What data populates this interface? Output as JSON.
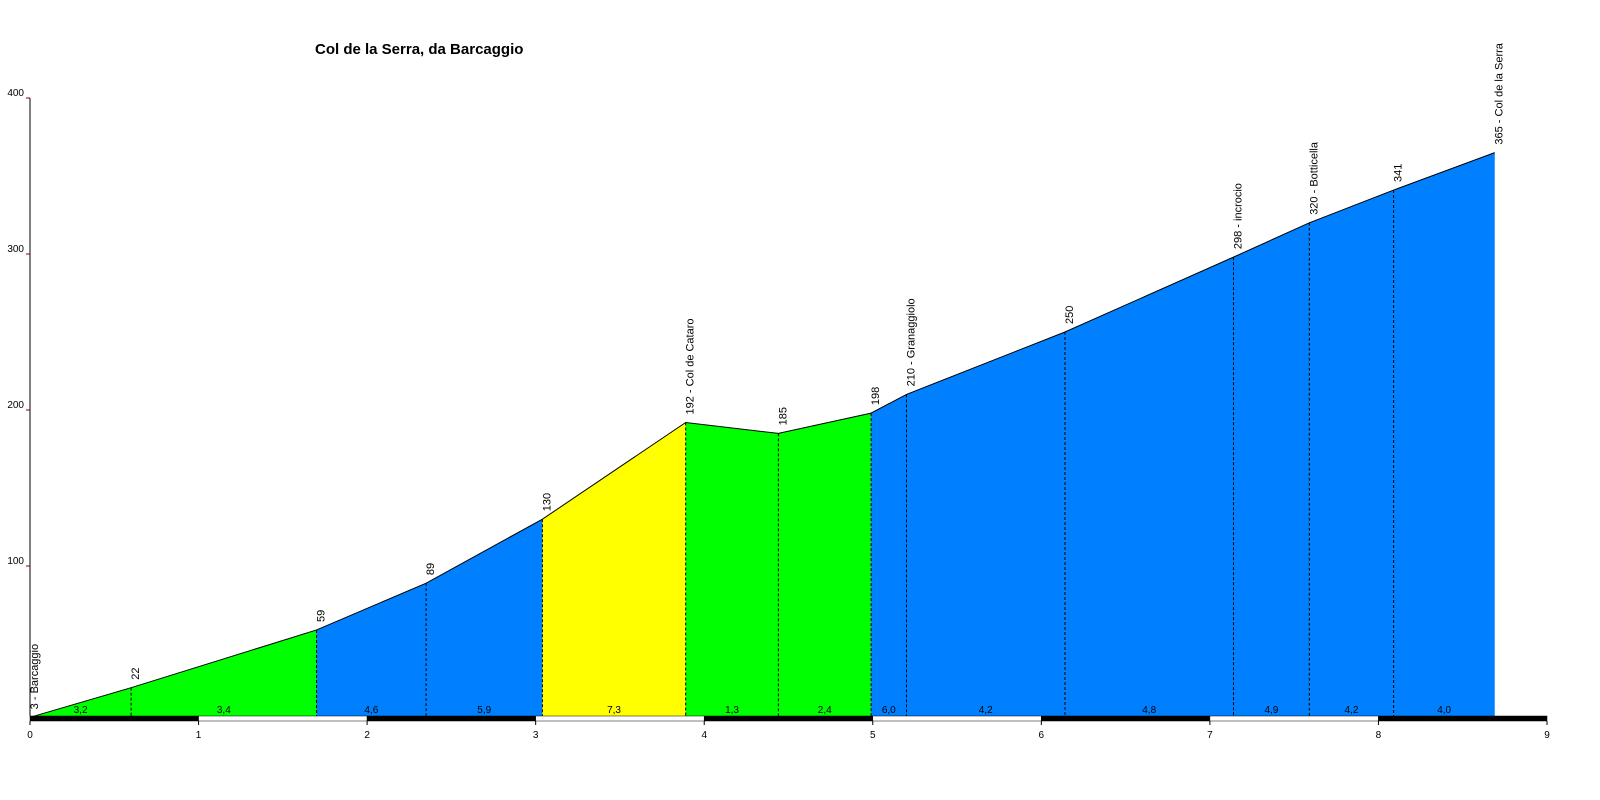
{
  "chart_data": {
    "type": "profile",
    "title": "Col de la Serra, da Barcaggio",
    "x": [
      0,
      0.6,
      1.7,
      2.35,
      3.04,
      3.89,
      4.44,
      4.99,
      5.2,
      6.14,
      7.14,
      7.59,
      8.09,
      8.69
    ],
    "values": [
      3,
      22,
      59,
      89,
      130,
      192,
      185,
      198,
      210,
      250,
      298,
      320,
      341,
      365
    ],
    "value_labels": [
      "3 - Barcaggio",
      "22",
      "59",
      "89",
      "130",
      "192 - Col de Cataro",
      "185",
      "198",
      "210 - Granaggiolo",
      "250",
      "298 - incrocio",
      "320 - Botticella",
      "341",
      "365 - Col de la Serra"
    ],
    "segment_labels": [
      "3,2",
      "3,4",
      "4,6",
      "5,9",
      "7,3",
      "1,3",
      "2,4",
      "6,0",
      "4,2",
      "4,8",
      "4,9",
      "4,2",
      "4,0"
    ],
    "segment_colors": [
      "#00ff00",
      "#00ff00",
      "#0080ff",
      "#0080ff",
      "#ffff00",
      "#00ff00",
      "#00ff00",
      "#0080ff",
      "#0080ff",
      "#0080ff",
      "#0080ff",
      "#0080ff",
      "#0080ff"
    ],
    "xlim": [
      0,
      9
    ],
    "xticks": [
      0,
      1,
      2,
      3,
      4,
      5,
      6,
      7,
      8,
      9
    ],
    "ylim": [
      0,
      400
    ],
    "yticks": [
      100,
      200,
      300,
      400
    ]
  }
}
